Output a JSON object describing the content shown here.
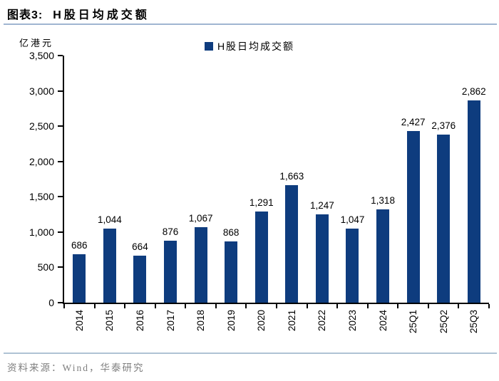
{
  "header": {
    "figure_label": "图表3:",
    "figure_title": "H股日均成交额"
  },
  "unit_label": "亿港元",
  "legend": {
    "swatch_icon": "navy-square-icon",
    "label": "H股日均成交额"
  },
  "footer": {
    "source": "资料来源：Wind，华泰研究"
  },
  "colors": {
    "bar": "#0E3C7E",
    "header_divider": "#9FB5D1",
    "footer_divider": "#AFC2D4",
    "footer_text": "#7F7F7F",
    "axis": "#000000"
  },
  "chart_data": {
    "type": "bar",
    "title": "H股日均成交额",
    "xlabel": "",
    "ylabel": "亿港元",
    "categories": [
      "2014",
      "2015",
      "2016",
      "2017",
      "2018",
      "2019",
      "2020",
      "2021",
      "2022",
      "2023",
      "2024",
      "25Q1",
      "25Q2",
      "25Q3"
    ],
    "values": [
      686,
      1044,
      664,
      876,
      1067,
      868,
      1291,
      1663,
      1247,
      1047,
      1318,
      2427,
      2376,
      2862
    ],
    "value_labels": [
      "686",
      "1,044",
      "664",
      "876",
      "1,067",
      "868",
      "1,291",
      "1,663",
      "1,247",
      "1,047",
      "1,318",
      "2,427",
      "2,376",
      "2,862"
    ],
    "ylim": [
      0,
      3500
    ],
    "ytick_step": 500,
    "ytick_labels": [
      "0",
      "500",
      "1,000",
      "1,500",
      "2,000",
      "2,500",
      "3,000",
      "3,500"
    ],
    "legend_entries": [
      "H股日均成交额"
    ],
    "legend_position": "top-center",
    "grid": false,
    "x_tick_label_rotation_deg": 90
  }
}
